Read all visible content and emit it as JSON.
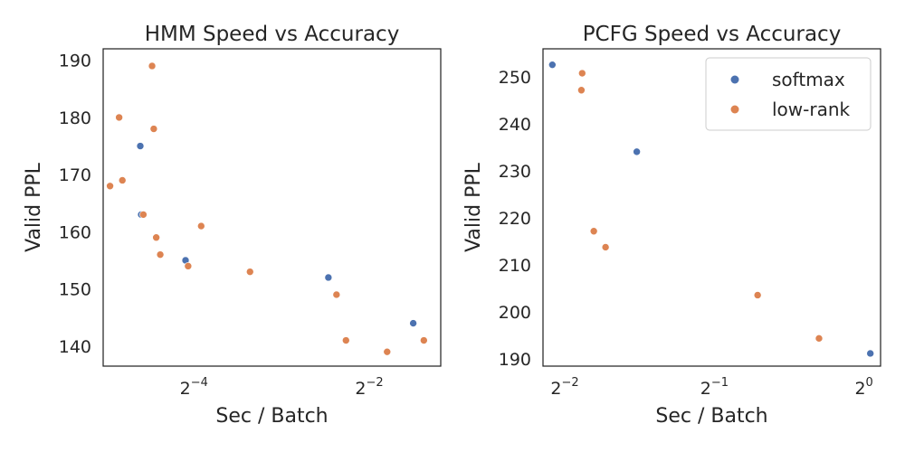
{
  "colors": {
    "softmax": "#4c72b0",
    "low-rank": "#dd8452",
    "axis": "#262626",
    "legend_border": "#cccccc"
  },
  "chart_data": [
    {
      "type": "scatter",
      "title": "HMM Speed vs Accuracy",
      "xlabel": "Sec / Batch",
      "ylabel": "Valid PPL",
      "xscale": "log2",
      "xlim": [
        0.0305,
        0.44
      ],
      "ylim": [
        136.5,
        192
      ],
      "xticks": [
        {
          "base": "2",
          "exp": "−4",
          "value": 0.0625
        },
        {
          "base": "2",
          "exp": "−2",
          "value": 0.25
        }
      ],
      "yticks": [
        140,
        150,
        160,
        170,
        180,
        190
      ],
      "grid": false,
      "legend": null,
      "series": [
        {
          "name": "softmax",
          "color": "#4c72b0",
          "points": [
            {
              "x": 0.0409,
              "y": 175
            },
            {
              "x": 0.0412,
              "y": 163
            },
            {
              "x": 0.0585,
              "y": 155
            },
            {
              "x": 0.181,
              "y": 152
            },
            {
              "x": 0.354,
              "y": 144
            }
          ]
        },
        {
          "name": "low-rank",
          "color": "#dd8452",
          "points": [
            {
              "x": 0.0322,
              "y": 168
            },
            {
              "x": 0.0346,
              "y": 180
            },
            {
              "x": 0.0355,
              "y": 169
            },
            {
              "x": 0.0419,
              "y": 163
            },
            {
              "x": 0.0449,
              "y": 189
            },
            {
              "x": 0.0455,
              "y": 178
            },
            {
              "x": 0.0464,
              "y": 159
            },
            {
              "x": 0.0479,
              "y": 156
            },
            {
              "x": 0.0597,
              "y": 154
            },
            {
              "x": 0.0662,
              "y": 161
            },
            {
              "x": 0.0974,
              "y": 153
            },
            {
              "x": 0.193,
              "y": 149
            },
            {
              "x": 0.208,
              "y": 141
            },
            {
              "x": 0.288,
              "y": 139
            },
            {
              "x": 0.385,
              "y": 141
            }
          ]
        }
      ]
    },
    {
      "type": "scatter",
      "title": "PCFG Speed vs Accuracy",
      "xlabel": "Sec / Batch",
      "ylabel": "Valid PPL",
      "xscale": "log2",
      "xlim": [
        0.226,
        1.08
      ],
      "ylim": [
        188.5,
        256
      ],
      "xticks": [
        {
          "base": "2",
          "exp": "−2",
          "value": 0.25
        },
        {
          "base": "2",
          "exp": "−1",
          "value": 0.5
        },
        {
          "base": "2",
          "exp": "0",
          "value": 1
        }
      ],
      "yticks": [
        190,
        200,
        210,
        220,
        230,
        240,
        250
      ],
      "grid": false,
      "legend": {
        "position": "top-right",
        "entries": [
          "softmax",
          "low-rank"
        ]
      },
      "series": [
        {
          "name": "softmax",
          "color": "#4c72b0",
          "points": [
            {
              "x": 0.236,
              "y": 252.6
            },
            {
              "x": 0.349,
              "y": 234.1
            },
            {
              "x": 1.03,
              "y": 191.2
            }
          ]
        },
        {
          "name": "low-rank",
          "color": "#dd8452",
          "points": [
            {
              "x": 0.271,
              "y": 250.8
            },
            {
              "x": 0.27,
              "y": 247.2
            },
            {
              "x": 0.286,
              "y": 217.2
            },
            {
              "x": 0.302,
              "y": 213.8
            },
            {
              "x": 0.611,
              "y": 203.6
            },
            {
              "x": 0.812,
              "y": 194.4
            }
          ]
        }
      ]
    }
  ]
}
